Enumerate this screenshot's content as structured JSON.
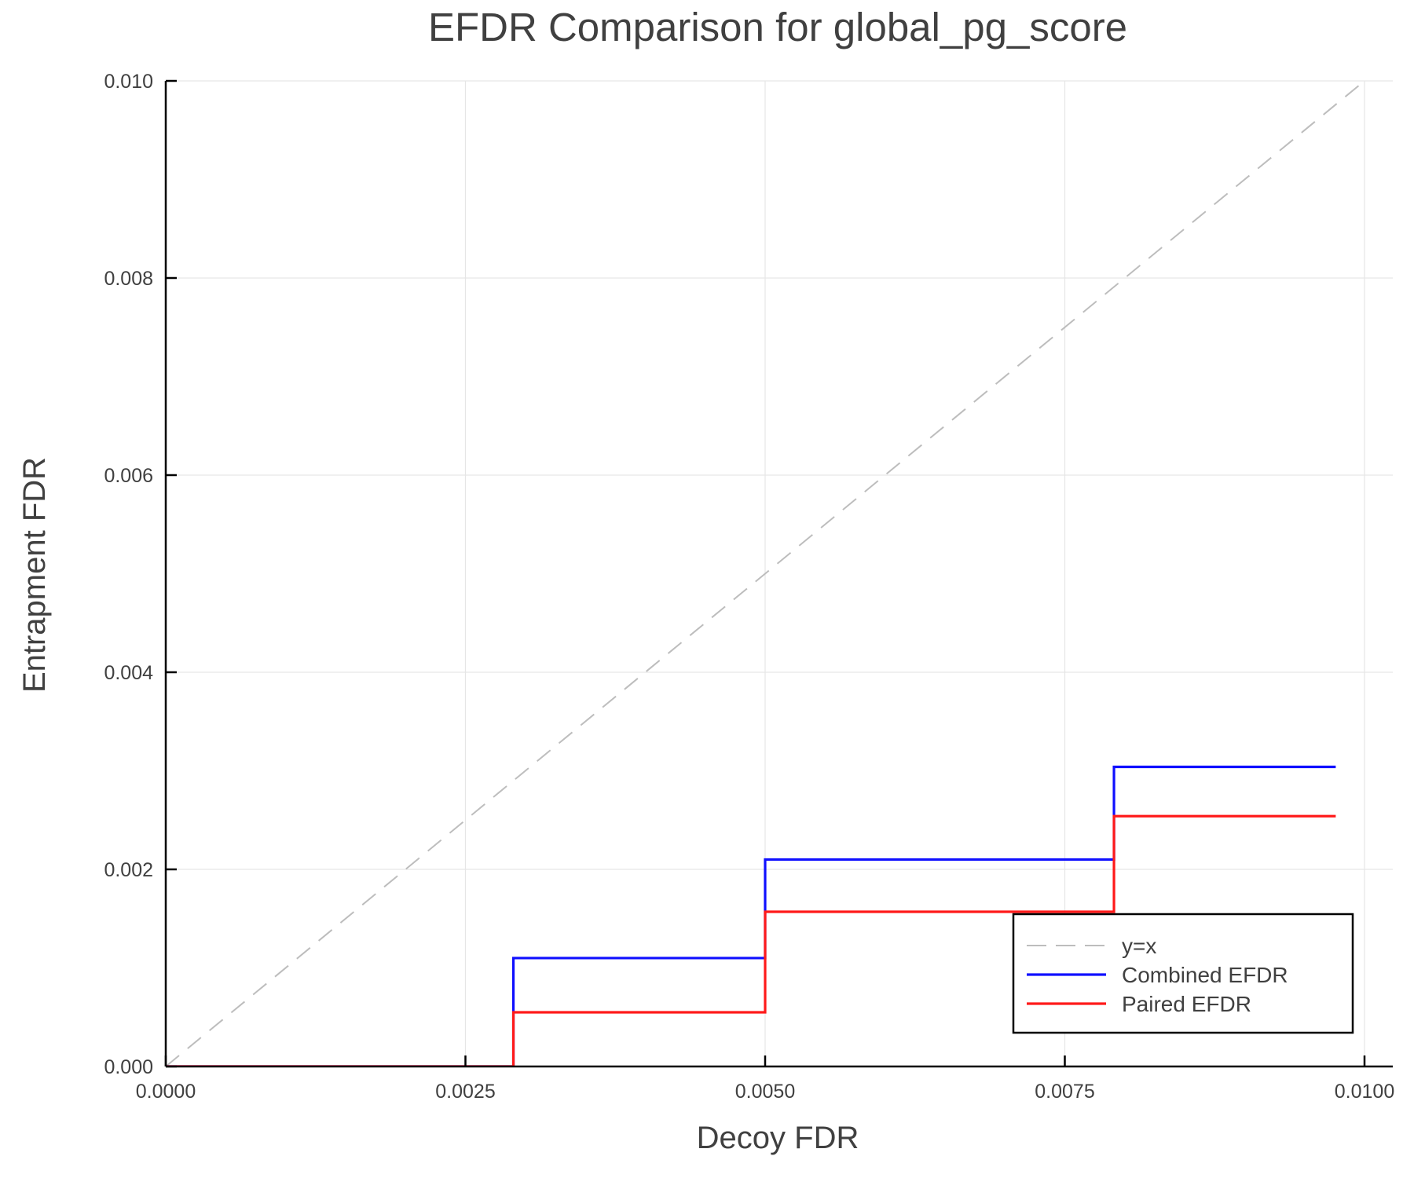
{
  "chart_data": {
    "type": "line",
    "title": "EFDR Comparison for global_pg_score",
    "xlabel": "Decoy FDR",
    "ylabel": "Entrapment FDR",
    "xlim": [
      0,
      0.0102
    ],
    "ylim": [
      0,
      0.01
    ],
    "xticks": [
      "0.0000",
      "0.0025",
      "0.0050",
      "0.0075",
      "0.0100"
    ],
    "yticks": [
      "0.000",
      "0.002",
      "0.004",
      "0.006",
      "0.008",
      "0.010"
    ],
    "grid": true,
    "legend_position": "bottom-right",
    "series": [
      {
        "name": "y=x",
        "style": "dashed",
        "color": "#bdbdbd",
        "step": false,
        "x": [
          0,
          0.0102
        ],
        "y": [
          0,
          0.0102
        ]
      },
      {
        "name": "Combined EFDR",
        "style": "solid",
        "color": "#1010ff",
        "step": true,
        "x": [
          0,
          0.0029,
          0.005,
          0.00791,
          0.00976
        ],
        "y": [
          0,
          0.0011,
          0.0021,
          0.00304,
          0.00304
        ]
      },
      {
        "name": "Paired EFDR",
        "style": "solid",
        "color": "#ff1a1a",
        "step": true,
        "x": [
          0,
          0.0029,
          0.005,
          0.00791,
          0.00976
        ],
        "y": [
          0,
          0.00055,
          0.00157,
          0.00254,
          0.00254
        ]
      }
    ]
  }
}
